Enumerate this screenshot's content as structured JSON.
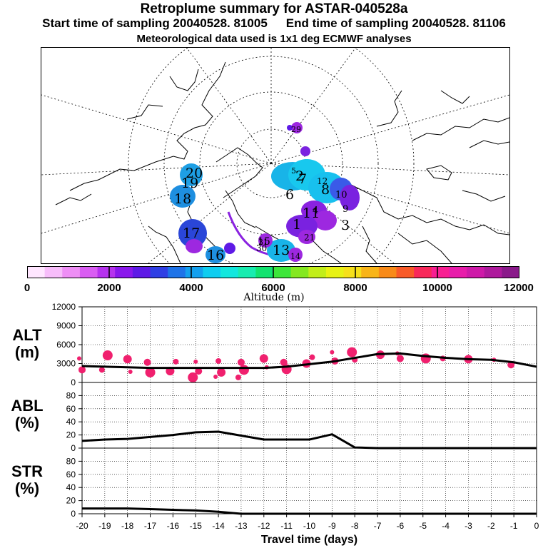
{
  "title": "Retroplume summary for ASTAR-040528a",
  "start_label": "Start time of sampling 20040528. 81005",
  "end_label": "End time of sampling 20040528. 81106",
  "met_label": "Meteorological data used is 1x1 deg ECMWF analyses",
  "colorbar": {
    "label": "Altitude (m)",
    "ticks": [
      "0",
      "2000",
      "4000",
      "6000",
      "8000",
      "10000",
      "12000"
    ],
    "min": 0,
    "max": 12000,
    "colors": [
      "#ffe6ff",
      "#f7bdfa",
      "#ee8ef5",
      "#d95df2",
      "#b633ee",
      "#8a18ec",
      "#5e1ae6",
      "#2f3fe4",
      "#1e73e8",
      "#14a0ee",
      "#0fcdf0",
      "#12e7de",
      "#18ecb0",
      "#12e36f",
      "#3de63a",
      "#84e820",
      "#c2ee1a",
      "#e8f214",
      "#f6e01a",
      "#f8b418",
      "#f88a18",
      "#f85a28",
      "#f8285a",
      "#f81e92",
      "#e81caa",
      "#ce1aa8",
      "#ae1a9c",
      "#8a1a8a"
    ]
  },
  "map": {
    "plume_labels": [
      {
        "t": "20",
        "c": "#1e9fe4"
      },
      {
        "t": "19",
        "c": "#1e9fe4"
      },
      {
        "t": "18",
        "c": "#1e8fe0"
      },
      {
        "t": "17",
        "c": "#2a46d8"
      },
      {
        "t": "16",
        "c": "#1e8fe0"
      },
      {
        "t": "15",
        "c": "#9d28e0"
      },
      {
        "t": "14",
        "c": "#9d28e0"
      },
      {
        "t": "13",
        "c": "#18b4e8"
      },
      {
        "t": "12",
        "c": "#18c8ee"
      },
      {
        "t": "11",
        "c": "#7a22e0"
      },
      {
        "t": "10",
        "c": "#3a5ae8"
      },
      {
        "t": "9",
        "c": "#18c0ee"
      },
      {
        "t": "8",
        "c": "#1e8fe0"
      },
      {
        "t": "7",
        "c": "#18c8ee"
      },
      {
        "t": "6",
        "c": "#18c8ee"
      },
      {
        "t": "5",
        "c": "#18c8ee"
      },
      {
        "t": "4",
        "c": "#8a22e0"
      },
      {
        "t": "3",
        "c": "#8a22e0"
      },
      {
        "t": "2",
        "c": "#18c8ee"
      },
      {
        "t": "1",
        "c": "#7a22e0"
      },
      {
        "t": "21",
        "c": "#7a22e0"
      },
      {
        "t": "29",
        "c": "#9a22d8"
      },
      {
        "t": "30",
        "c": "#9a22d8"
      },
      {
        "t": "31",
        "c": "#7a22e0"
      }
    ]
  },
  "chart_data": [
    {
      "id": "ALT",
      "type": "line",
      "ylabel": "ALT\n(m)",
      "ylabel_lines": [
        "ALT",
        "(m)"
      ],
      "ylim": [
        0,
        12000
      ],
      "yticks": [
        0,
        3000,
        6000,
        9000,
        12000
      ],
      "x": [
        -20,
        -19,
        -18,
        -17,
        -16,
        -15,
        -14,
        -13,
        -12,
        -11,
        -10,
        -9,
        -8,
        -7,
        -6,
        -5,
        -4,
        -3,
        -2,
        -1,
        0
      ],
      "values": [
        2600,
        2500,
        2400,
        2300,
        2300,
        2300,
        2300,
        2300,
        2300,
        2500,
        2900,
        3300,
        3900,
        4500,
        4600,
        4200,
        3900,
        3700,
        3600,
        3200,
        2500
      ],
      "dots": [
        {
          "x": -20,
          "y": 3800
        },
        {
          "x": -20,
          "y": 2000
        },
        {
          "x": -19,
          "y": 4300
        },
        {
          "x": -19,
          "y": 2000
        },
        {
          "x": -18,
          "y": 3700
        },
        {
          "x": -18,
          "y": 1700
        },
        {
          "x": -17,
          "y": 3200
        },
        {
          "x": -17,
          "y": 1600
        },
        {
          "x": -16,
          "y": 3300
        },
        {
          "x": -16,
          "y": 1800
        },
        {
          "x": -15,
          "y": 3300
        },
        {
          "x": -15,
          "y": 1800
        },
        {
          "x": -15,
          "y": 800
        },
        {
          "x": -14,
          "y": 3400
        },
        {
          "x": -14,
          "y": 1600
        },
        {
          "x": -14,
          "y": 900
        },
        {
          "x": -13,
          "y": 3200
        },
        {
          "x": -13,
          "y": 2000
        },
        {
          "x": -13,
          "y": 800
        },
        {
          "x": -12,
          "y": 3800
        },
        {
          "x": -12,
          "y": 2400
        },
        {
          "x": -11,
          "y": 3200
        },
        {
          "x": -11,
          "y": 2100
        },
        {
          "x": -10,
          "y": 4000
        },
        {
          "x": -10,
          "y": 3000
        },
        {
          "x": -9,
          "y": 4800
        },
        {
          "x": -9,
          "y": 3400
        },
        {
          "x": -8,
          "y": 4800
        },
        {
          "x": -8,
          "y": 3600
        },
        {
          "x": -7,
          "y": 4400
        },
        {
          "x": -6,
          "y": 4600
        },
        {
          "x": -6,
          "y": 3800
        },
        {
          "x": -5,
          "y": 3800
        },
        {
          "x": -4,
          "y": 3800
        },
        {
          "x": -3,
          "y": 3700
        },
        {
          "x": -2,
          "y": 3600
        },
        {
          "x": -1,
          "y": 2800
        }
      ],
      "dot_color": "#f0206e"
    },
    {
      "id": "ABL",
      "type": "line",
      "ylabel": "ABL\n(%)",
      "ylabel_lines": [
        "ABL",
        "(%)"
      ],
      "ylim": [
        0,
        100
      ],
      "yticks": [
        0,
        20,
        40,
        60,
        80
      ],
      "x": [
        -20,
        -19,
        -18,
        -17,
        -16,
        -15,
        -14,
        -13,
        -12,
        -11,
        -10,
        -9,
        -8,
        -7,
        -6,
        -5,
        -4,
        -3,
        -2,
        -1,
        0
      ],
      "values": [
        11,
        13,
        14,
        17,
        20,
        24,
        25,
        19,
        13,
        13,
        13,
        21,
        1,
        0,
        0,
        0,
        0,
        0,
        0,
        0,
        0
      ]
    },
    {
      "id": "STR",
      "type": "line",
      "ylabel": "STR\n(%)",
      "ylabel_lines": [
        "STR",
        "(%)"
      ],
      "ylim": [
        0,
        100
      ],
      "yticks": [
        0,
        20,
        40,
        60,
        80
      ],
      "x": [
        -20,
        -19,
        -18,
        -17,
        -16,
        -15,
        -14,
        -13,
        -12,
        -11,
        -10,
        -9,
        -8,
        -7,
        -6,
        -5,
        -4,
        -3,
        -2,
        -1,
        0
      ],
      "values": [
        8,
        8,
        8,
        7,
        6,
        5,
        3,
        0,
        0,
        0,
        0,
        0,
        0,
        0,
        0,
        0,
        0,
        0,
        0,
        0,
        0
      ],
      "xlabel": "Travel time (days)",
      "xticks": [
        "-20",
        "-19",
        "-18",
        "-17",
        "-16",
        "-15",
        "-14",
        "-13",
        "-12",
        "-11",
        "-10",
        "-9",
        "-8",
        "-7",
        "-6",
        "-5",
        "-4",
        "-3",
        "-2",
        "-1",
        "0"
      ]
    }
  ]
}
